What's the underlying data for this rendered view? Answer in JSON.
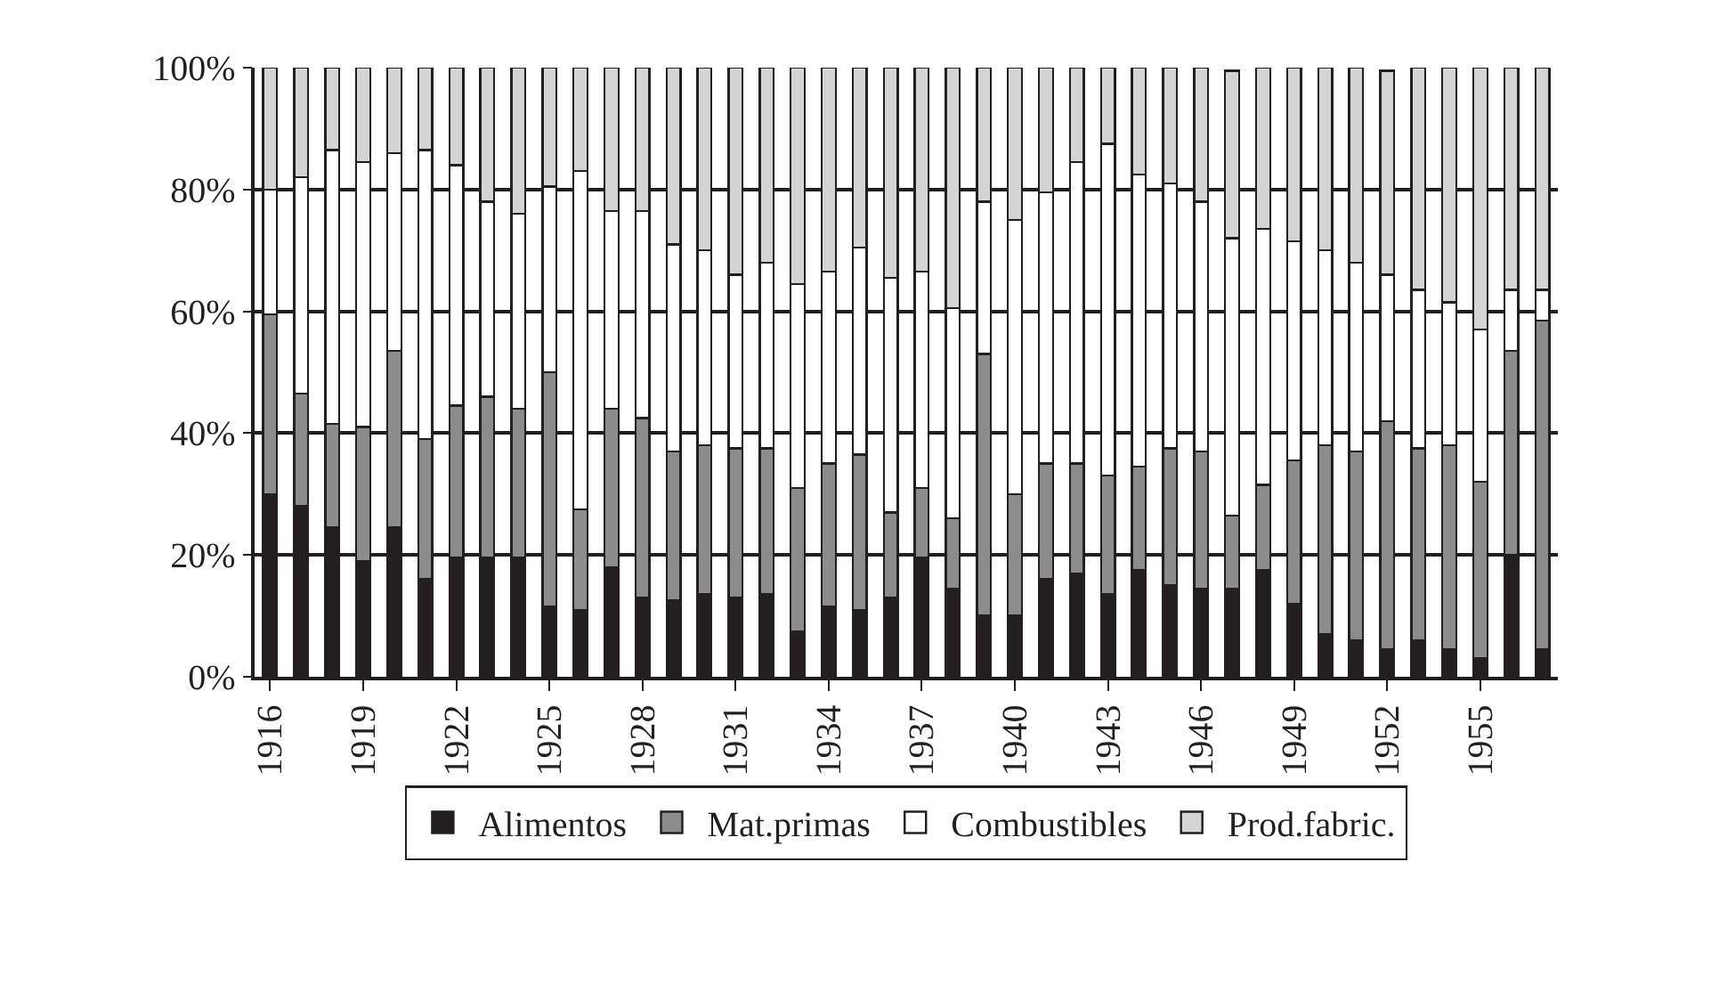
{
  "chart_data": {
    "type": "bar",
    "stacked": true,
    "categories": [
      "1916",
      null,
      null,
      "1919",
      null,
      null,
      "1922",
      null,
      null,
      "1925",
      null,
      null,
      "1928",
      null,
      null,
      "1931",
      null,
      null,
      "1934",
      null,
      null,
      "1937",
      null,
      null,
      "1940",
      null,
      null,
      "1943",
      null,
      null,
      "1946",
      null,
      null,
      "1949",
      null,
      null,
      "1952",
      null,
      null,
      "1955",
      null,
      null
    ],
    "series": [
      {
        "name": "Alimentos",
        "color": "#231f20",
        "values": [
          30,
          28,
          24.5,
          19,
          24.5,
          16,
          19.5,
          19.5,
          19.5,
          11.5,
          11,
          18,
          13,
          12.5,
          13.5,
          13,
          13.5,
          7.5,
          11.5,
          11,
          13,
          19.5,
          14.5,
          10,
          10,
          16,
          17,
          13.5,
          17.5,
          15,
          14.5,
          14.5,
          17.5,
          12,
          7,
          6,
          4.5,
          6,
          4.5,
          3,
          20,
          4.5
        ]
      },
      {
        "name": "Mat.primas",
        "color": "#8c8c8c",
        "values": [
          29.5,
          18.5,
          17,
          22,
          29,
          23,
          25,
          26.5,
          24.5,
          38.5,
          16.5,
          26,
          29.5,
          24.5,
          24.5,
          24.5,
          24,
          23.5,
          23.5,
          25.5,
          14,
          11.5,
          11.5,
          43,
          20,
          19,
          18,
          19.5,
          17,
          22.5,
          22.5,
          12,
          14,
          23.5,
          31,
          31,
          37.5,
          31.5,
          33.5,
          29,
          33.5,
          54
        ]
      },
      {
        "name": "Combustibles",
        "color": "#ffffff",
        "values": [
          20.5,
          35.5,
          45,
          43.5,
          32.5,
          47.5,
          39.5,
          32,
          32,
          30.5,
          55.5,
          32.5,
          34,
          34,
          32,
          28.5,
          30.5,
          33.5,
          31.5,
          34,
          38.5,
          35.5,
          34.5,
          25,
          45,
          44.5,
          49.5,
          54.5,
          48,
          43.5,
          41,
          45.5,
          42,
          36,
          32,
          31,
          24,
          26,
          23.5,
          25,
          10,
          5
        ]
      },
      {
        "name": "Prod.fabric.",
        "color": "#d4d4d4",
        "values": [
          20,
          18,
          13.5,
          15.5,
          14,
          13.5,
          16,
          22,
          24,
          19.5,
          17,
          23.5,
          23.5,
          29,
          30,
          34,
          32,
          35.5,
          33.5,
          29.5,
          34.5,
          33.5,
          39.5,
          22,
          25,
          20.5,
          15.5,
          12.5,
          17.5,
          19,
          22,
          27.5,
          26.5,
          28.5,
          30,
          32,
          33.5,
          36.5,
          38.5,
          43,
          36.5,
          36.5
        ]
      }
    ],
    "ylim": [
      0,
      100
    ],
    "yticks": [
      {
        "value": 0,
        "label": "0%"
      },
      {
        "value": 20,
        "label": "20%"
      },
      {
        "value": 40,
        "label": "40%"
      },
      {
        "value": 60,
        "label": "60%"
      },
      {
        "value": 80,
        "label": "80%"
      },
      {
        "value": 100,
        "label": "100%"
      }
    ],
    "grid": "y",
    "legend": "bottom"
  }
}
